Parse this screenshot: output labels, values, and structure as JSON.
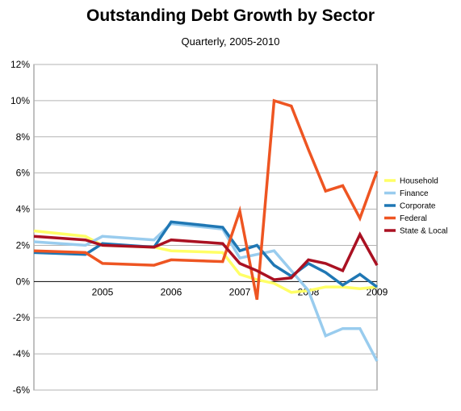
{
  "chart_data": {
    "type": "line",
    "title": "Outstanding Debt Growth by Sector",
    "subtitle": "Quarterly, 2005-2010",
    "y_unit": "%",
    "ylim": [
      -6,
      12
    ],
    "y_ticks": [
      -6,
      -4,
      -2,
      0,
      2,
      4,
      6,
      8,
      10,
      12
    ],
    "y_tick_labels": [
      "-6%",
      "-4%",
      "-2%",
      "0%",
      "2%",
      "4%",
      "6%",
      "8%",
      "10%",
      "12%"
    ],
    "x_tick_labels": [
      "2005",
      "2006",
      "2007",
      "2008",
      "2009"
    ],
    "grid": "horizontal",
    "legend_position": "right",
    "x": [
      "2004 Q2",
      "2005 Q1",
      "2005 Q2",
      "2006 Q1",
      "2006 Q2",
      "2007 Q1",
      "2007 Q2",
      "2007 Q3",
      "2007 Q4",
      "2008 Q1",
      "2008 Q2",
      "2008 Q3",
      "2008 Q4",
      "2009 Q1",
      "2009 Q2"
    ],
    "series": [
      {
        "name": "Household",
        "color": "#ffff66",
        "values": [
          2.8,
          2.5,
          2.0,
          1.9,
          1.7,
          1.6,
          0.4,
          0.1,
          -0.1,
          -0.6,
          -0.5,
          -0.3,
          -0.3,
          -0.4,
          -0.3
        ]
      },
      {
        "name": "Finance",
        "color": "#99ccee",
        "values": [
          2.2,
          2.0,
          2.5,
          2.3,
          3.2,
          2.9,
          1.3,
          1.5,
          1.7,
          0.6,
          -0.5,
          -3.0,
          -2.6,
          -2.6,
          -4.4
        ]
      },
      {
        "name": "Corporate",
        "color": "#1f77b4",
        "values": [
          1.6,
          1.5,
          2.1,
          1.9,
          3.3,
          3.0,
          1.7,
          2.0,
          0.9,
          0.3,
          1.0,
          0.5,
          -0.2,
          0.4,
          -0.3
        ]
      },
      {
        "name": "Federal",
        "color": "#ee5522",
        "values": [
          1.7,
          1.6,
          1.0,
          0.9,
          1.2,
          1.1,
          3.9,
          -1.0,
          10.0,
          9.7,
          7.3,
          5.0,
          5.3,
          3.5,
          6.1
        ]
      },
      {
        "name": "State & Local",
        "color": "#aa1122",
        "values": [
          2.5,
          2.3,
          2.0,
          1.9,
          2.3,
          2.1,
          1.0,
          0.6,
          0.1,
          0.2,
          1.2,
          1.0,
          0.6,
          2.6,
          0.9
        ]
      }
    ]
  }
}
